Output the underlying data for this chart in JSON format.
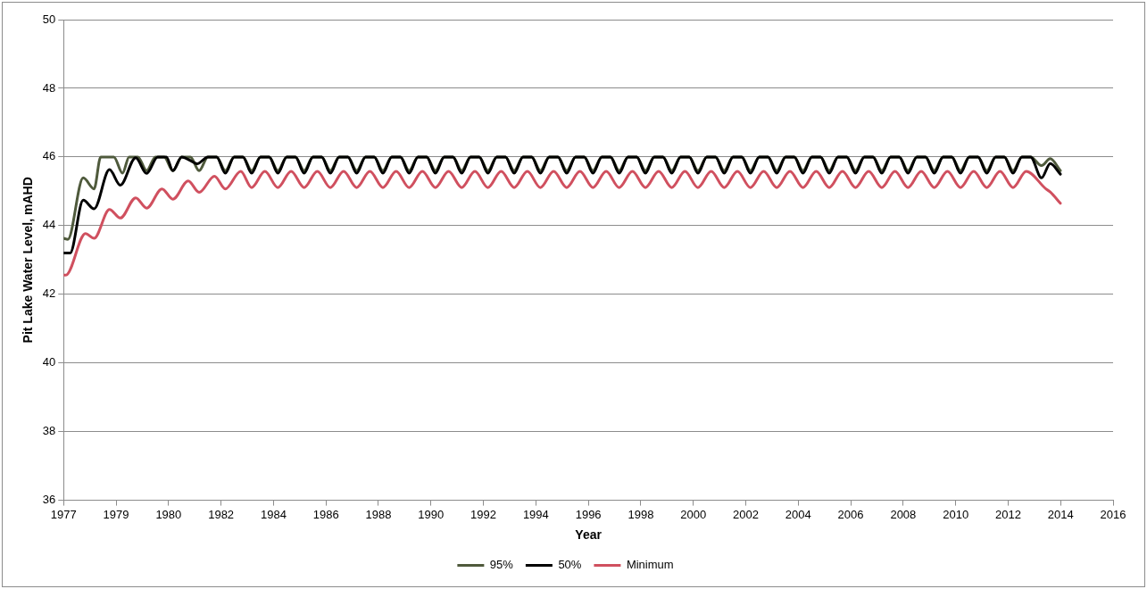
{
  "chart_data": {
    "type": "line",
    "xlabel": "Year",
    "ylabel": "Pit Lake Water Level, mAHD",
    "xlim": [
      "1977-01-01",
      "2016-12-22"
    ],
    "ylim": [
      36,
      50
    ],
    "xticks": [
      {
        "value": "1977-01-01",
        "label": "1977"
      },
      {
        "value": "1979-01-01",
        "label": "1979"
      },
      {
        "value": "1980-12-31",
        "label": "1980"
      },
      {
        "value": "1982-12-31",
        "label": "1982"
      },
      {
        "value": "1984-12-30",
        "label": "1984"
      },
      {
        "value": "1986-12-30",
        "label": "1986"
      },
      {
        "value": "1988-12-29",
        "label": "1988"
      },
      {
        "value": "1990-12-29",
        "label": "1990"
      },
      {
        "value": "1992-12-28",
        "label": "1992"
      },
      {
        "value": "1994-12-28",
        "label": "1994"
      },
      {
        "value": "1996-12-27",
        "label": "1996"
      },
      {
        "value": "1998-12-27",
        "label": "1998"
      },
      {
        "value": "2000-12-26",
        "label": "2000"
      },
      {
        "value": "2002-12-26",
        "label": "2002"
      },
      {
        "value": "2004-12-25",
        "label": "2004"
      },
      {
        "value": "2006-12-25",
        "label": "2006"
      },
      {
        "value": "2008-12-24",
        "label": "2008"
      },
      {
        "value": "2010-12-24",
        "label": "2010"
      },
      {
        "value": "2012-12-23",
        "label": "2012"
      },
      {
        "value": "2014-12-23",
        "label": "2014"
      },
      {
        "value": "2016-12-22",
        "label": "2016"
      }
    ],
    "yticks": [
      36,
      38,
      40,
      42,
      44,
      46,
      48,
      50
    ],
    "grid": "y",
    "legend": "bottom",
    "marker": "none",
    "line_style": "solid",
    "series": [
      {
        "name": "95%",
        "color": "#4f5a3c",
        "x": [
          "1977-01",
          "1977-03",
          "1977-10",
          "1978-03",
          "1978-06",
          "1978-12",
          "1979-04",
          "1979-07",
          "1979-11",
          "1980-03",
          "1980-07",
          "1980-11",
          "1981-03",
          "1981-07",
          "1981-11",
          "1982-03",
          "1982-07",
          "1982-11",
          "1983-03",
          "1983-07",
          "1983-11",
          "1984-03",
          "1984-07",
          "1984-11",
          "1985-03",
          "1985-07",
          "1985-11",
          "1986-03",
          "1986-07",
          "1986-11",
          "1987-03",
          "1987-07",
          "1987-11",
          "1988-03",
          "1988-07",
          "1988-11",
          "1989-03",
          "1989-07",
          "1989-11",
          "1990-03",
          "1990-07",
          "1990-11",
          "1991-03",
          "1991-07",
          "1991-11",
          "1992-03",
          "1992-07",
          "1992-11",
          "1993-03",
          "1993-07",
          "1993-11",
          "1994-03",
          "1994-07",
          "1994-11",
          "1995-03",
          "1995-07",
          "1995-11",
          "1996-03",
          "1996-07",
          "1996-11",
          "1997-03",
          "1997-07",
          "1997-11",
          "1998-03",
          "1998-07",
          "1998-11",
          "1999-03",
          "1999-07",
          "1999-11",
          "2000-03",
          "2000-07",
          "2000-11",
          "2001-03",
          "2001-07",
          "2001-11",
          "2002-03",
          "2002-07",
          "2002-11",
          "2003-03",
          "2003-07",
          "2003-11",
          "2004-03",
          "2004-07",
          "2004-11",
          "2005-03",
          "2005-07",
          "2005-11",
          "2006-03",
          "2006-07",
          "2006-11",
          "2007-03",
          "2007-07",
          "2007-11",
          "2008-03",
          "2008-07",
          "2008-11",
          "2009-03",
          "2009-07",
          "2009-11",
          "2010-03",
          "2010-07",
          "2010-11",
          "2011-03",
          "2011-07",
          "2011-11",
          "2012-03",
          "2012-07",
          "2012-11",
          "2013-03",
          "2013-07",
          "2013-11",
          "2014-04",
          "2014-08",
          "2014-12-20"
        ],
        "values": [
          43.63,
          43.6,
          45.39,
          45.07,
          46,
          46,
          45.53,
          46,
          46,
          45.6,
          46,
          46,
          45.6,
          46,
          46,
          45.6,
          46,
          46,
          45.6,
          46,
          46,
          45.6,
          46,
          46,
          45.6,
          46,
          46,
          45.6,
          46,
          46,
          45.6,
          46,
          46,
          45.6,
          46,
          46,
          45.6,
          46,
          46,
          45.6,
          46,
          46,
          45.6,
          46,
          46,
          45.6,
          46,
          46,
          45.6,
          46,
          46,
          45.6,
          46,
          46,
          45.6,
          46,
          46,
          45.6,
          46,
          46,
          45.6,
          46,
          46,
          45.6,
          46,
          46,
          45.6,
          46,
          46,
          45.6,
          46,
          46,
          45.6,
          46,
          46,
          45.6,
          46,
          46,
          45.6,
          46,
          46,
          45.6,
          46,
          46,
          45.6,
          46,
          46,
          45.6,
          46,
          46,
          45.6,
          46,
          46,
          45.6,
          46,
          46,
          45.6,
          46,
          46,
          45.6,
          46,
          46,
          45.6,
          46,
          46,
          45.6,
          46,
          46,
          45.6,
          46,
          46,
          45.75,
          45.95,
          45.6
        ]
      },
      {
        "name": "50%",
        "color": "#000000",
        "x": [
          "1977-01",
          "1977-04",
          "1977-10",
          "1978-03",
          "1978-10",
          "1979-03",
          "1979-10",
          "1980-03",
          "1980-08",
          "1980-12",
          "1981-03",
          "1981-07",
          "1981-12",
          "1982-02",
          "1982-07",
          "1982-11",
          "1983-03",
          "1983-07",
          "1983-11",
          "1984-03",
          "1984-07",
          "1984-11",
          "1985-03",
          "1985-07",
          "1985-11",
          "1986-03",
          "1986-07",
          "1986-11",
          "1987-03",
          "1987-07",
          "1987-11",
          "1988-03",
          "1988-07",
          "1988-11",
          "1989-03",
          "1989-07",
          "1989-11",
          "1990-03",
          "1990-07",
          "1990-11",
          "1991-03",
          "1991-07",
          "1991-11",
          "1992-03",
          "1992-07",
          "1992-11",
          "1993-03",
          "1993-07",
          "1993-11",
          "1994-03",
          "1994-07",
          "1994-11",
          "1995-03",
          "1995-07",
          "1995-11",
          "1996-03",
          "1996-07",
          "1996-11",
          "1997-03",
          "1997-07",
          "1997-11",
          "1998-03",
          "1998-07",
          "1998-11",
          "1999-03",
          "1999-07",
          "1999-11",
          "2000-03",
          "2000-07",
          "2000-11",
          "2001-03",
          "2001-07",
          "2001-11",
          "2002-03",
          "2002-07",
          "2002-11",
          "2003-03",
          "2003-07",
          "2003-11",
          "2004-03",
          "2004-07",
          "2004-11",
          "2005-03",
          "2005-07",
          "2005-11",
          "2006-03",
          "2006-07",
          "2006-11",
          "2007-03",
          "2007-07",
          "2007-11",
          "2008-03",
          "2008-07",
          "2008-11",
          "2009-03",
          "2009-07",
          "2009-11",
          "2010-03",
          "2010-07",
          "2010-11",
          "2011-03",
          "2011-07",
          "2011-11",
          "2012-03",
          "2012-07",
          "2012-11",
          "2013-03",
          "2013-07",
          "2013-11",
          "2014-04",
          "2014-08",
          "2014-12-20"
        ],
        "values": [
          43.2,
          43.2,
          44.74,
          44.49,
          45.63,
          45.18,
          45.98,
          45.52,
          46,
          46,
          45.6,
          46,
          45.86,
          45.8,
          46,
          46,
          45.53,
          46,
          46,
          45.53,
          46,
          46,
          45.53,
          46,
          46,
          45.53,
          46,
          46,
          45.53,
          46,
          46,
          45.53,
          46,
          46,
          45.53,
          46,
          46,
          45.53,
          46,
          46,
          45.53,
          46,
          46,
          45.53,
          46,
          46,
          45.53,
          46,
          46,
          45.53,
          46,
          46,
          45.53,
          46,
          46,
          45.53,
          46,
          46,
          45.53,
          46,
          46,
          45.53,
          46,
          46,
          45.53,
          46,
          46,
          45.53,
          46,
          46,
          45.53,
          46,
          46,
          45.53,
          46,
          46,
          45.53,
          46,
          46,
          45.53,
          46,
          46,
          45.53,
          46,
          46,
          45.53,
          46,
          46,
          45.53,
          46,
          46,
          45.53,
          46,
          46,
          45.53,
          46,
          46,
          45.53,
          46,
          46,
          45.53,
          46,
          46,
          45.53,
          46,
          46,
          45.53,
          46,
          46,
          45.39,
          45.81,
          45.5
        ]
      },
      {
        "name": "Minimum",
        "color": "#d0505f",
        "x": [
          "1977-01",
          "1977-02",
          "1977-11",
          "1978-03",
          "1978-10",
          "1979-03",
          "1979-10",
          "1980-03",
          "1980-10",
          "1981-03",
          "1981-10",
          "1982-03",
          "1982-10",
          "1983-03",
          "1983-10",
          "1984-03",
          "1984-09",
          "1985-03",
          "1985-09",
          "1986-03",
          "1986-09",
          "1987-03",
          "1987-09",
          "1988-03",
          "1988-09",
          "1989-03",
          "1989-09",
          "1990-03",
          "1990-09",
          "1991-03",
          "1991-09",
          "1992-03",
          "1992-09",
          "1993-03",
          "1993-09",
          "1994-03",
          "1994-09",
          "1995-03",
          "1995-09",
          "1996-03",
          "1996-09",
          "1997-03",
          "1997-09",
          "1998-03",
          "1998-09",
          "1999-03",
          "1999-09",
          "2000-03",
          "2000-09",
          "2001-03",
          "2001-09",
          "2002-03",
          "2002-09",
          "2003-03",
          "2003-09",
          "2004-03",
          "2004-09",
          "2005-03",
          "2005-09",
          "2006-03",
          "2006-09",
          "2007-03",
          "2007-09",
          "2008-03",
          "2008-09",
          "2009-03",
          "2009-09",
          "2010-03",
          "2010-09",
          "2011-03",
          "2011-09",
          "2012-03",
          "2012-09",
          "2013-03",
          "2013-09",
          "2014-06",
          "2014-08",
          "2014-12-20"
        ],
        "values": [
          42.56,
          42.56,
          43.77,
          43.63,
          44.47,
          44.22,
          44.81,
          44.51,
          45.07,
          44.77,
          45.3,
          44.97,
          45.44,
          45.07,
          45.58,
          45.11,
          45.58,
          45.11,
          45.58,
          45.11,
          45.58,
          45.11,
          45.58,
          45.11,
          45.58,
          45.11,
          45.58,
          45.11,
          45.58,
          45.11,
          45.58,
          45.11,
          45.58,
          45.11,
          45.58,
          45.11,
          45.58,
          45.11,
          45.58,
          45.11,
          45.58,
          45.11,
          45.58,
          45.11,
          45.58,
          45.11,
          45.58,
          45.11,
          45.58,
          45.11,
          45.58,
          45.11,
          45.58,
          45.11,
          45.58,
          45.11,
          45.58,
          45.11,
          45.58,
          45.11,
          45.58,
          45.11,
          45.58,
          45.11,
          45.58,
          45.11,
          45.58,
          45.11,
          45.58,
          45.11,
          45.58,
          45.11,
          45.58,
          45.11,
          45.58,
          45.07,
          44.98,
          44.65
        ]
      }
    ]
  }
}
